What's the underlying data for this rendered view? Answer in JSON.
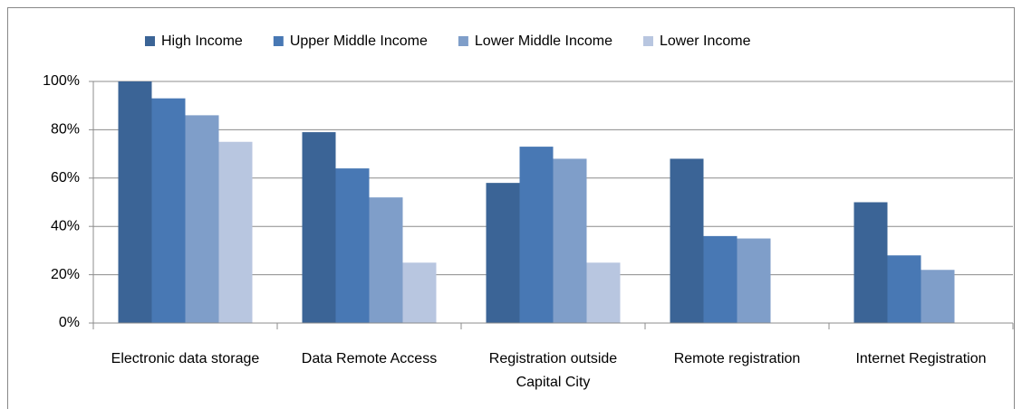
{
  "chart_data": {
    "type": "bar",
    "categories": [
      "Electronic data storage",
      "Data Remote Access",
      "Registration outside Capital City",
      "Remote registration",
      "Internet Registration"
    ],
    "series": [
      {
        "name": "High Income",
        "color": "#3b6496",
        "values": [
          100,
          79,
          58,
          68,
          50
        ]
      },
      {
        "name": "Upper Middle Income",
        "color": "#4878b4",
        "values": [
          93,
          64,
          73,
          36,
          28
        ]
      },
      {
        "name": "Lower Middle Income",
        "color": "#7f9ec9",
        "values": [
          86,
          52,
          68,
          35,
          22
        ]
      },
      {
        "name": "Lower Income",
        "color": "#b8c6e0",
        "values": [
          75,
          25,
          25,
          0,
          0
        ]
      }
    ],
    "ylim": [
      0,
      100
    ],
    "yticks": [
      {
        "value": 0,
        "label": "0%"
      },
      {
        "value": 20,
        "label": "20%"
      },
      {
        "value": 40,
        "label": "40%"
      },
      {
        "value": 60,
        "label": "60%"
      },
      {
        "value": 80,
        "label": "80%"
      },
      {
        "value": 100,
        "label": "100%"
      }
    ],
    "grid": true,
    "legend": "top"
  }
}
